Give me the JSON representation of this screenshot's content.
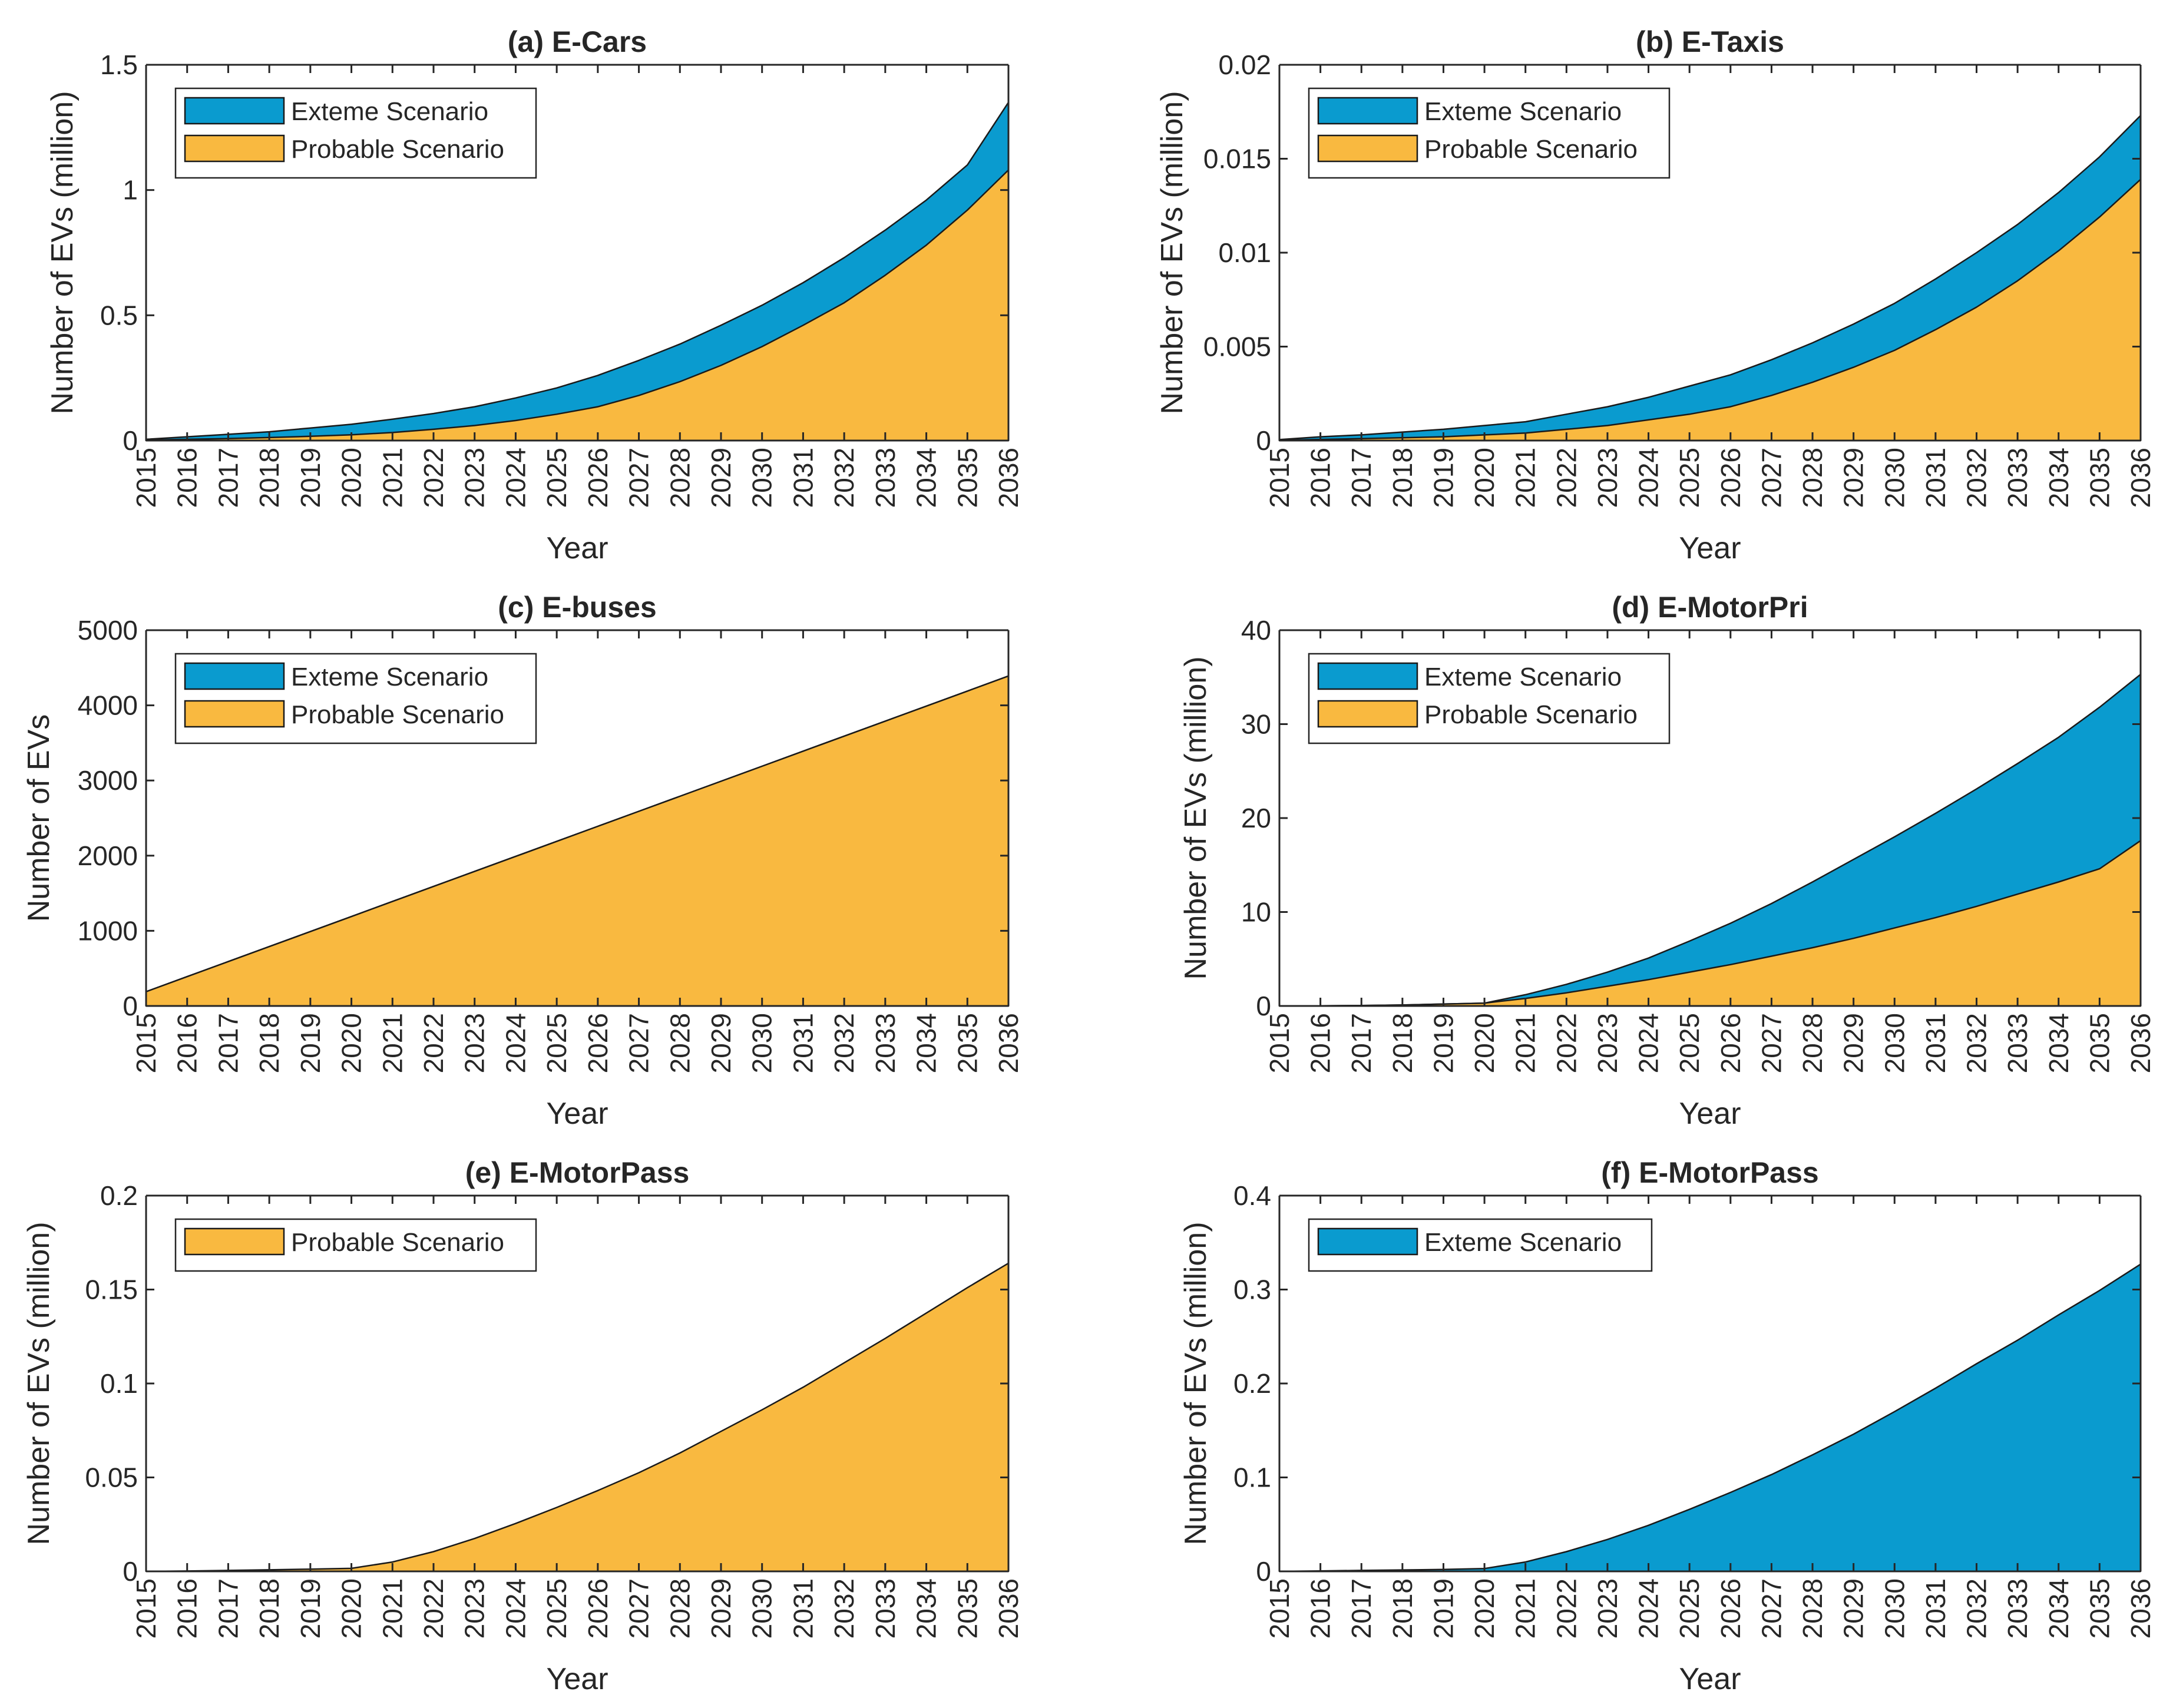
{
  "colors": {
    "extreme": "#0a9bcf",
    "probable": "#f9b940",
    "axis": "#262626",
    "outline": "#1a1a1a"
  },
  "chart_data": [
    {
      "id": "a",
      "type": "area",
      "title": "(a) E-Cars",
      "xlabel": "Year",
      "ylabel": "Number of EVs (million)",
      "xlim": [
        2015,
        2036
      ],
      "ylim": [
        0,
        1.5
      ],
      "yticks": [
        0,
        0.5,
        1,
        1.5
      ],
      "ytick_labels": [
        "0",
        "0.5",
        "1",
        "1.5"
      ],
      "legend": [
        "Exteme Scenario",
        "Probable Scenario"
      ],
      "x": [
        2015,
        2016,
        2017,
        2018,
        2019,
        2020,
        2021,
        2022,
        2023,
        2024,
        2025,
        2026,
        2027,
        2028,
        2029,
        2030,
        2031,
        2032,
        2033,
        2034,
        2035,
        2036
      ],
      "series": [
        {
          "name": "Exteme Scenario",
          "color_key": "extreme",
          "values": [
            0.005,
            0.015,
            0.025,
            0.035,
            0.05,
            0.065,
            0.085,
            0.108,
            0.135,
            0.17,
            0.21,
            0.26,
            0.32,
            0.385,
            0.46,
            0.54,
            0.63,
            0.73,
            0.84,
            0.96,
            1.1,
            1.35
          ]
        },
        {
          "name": "Probable Scenario",
          "color_key": "probable",
          "values": [
            0.002,
            0.005,
            0.008,
            0.012,
            0.017,
            0.023,
            0.032,
            0.045,
            0.06,
            0.08,
            0.105,
            0.135,
            0.18,
            0.235,
            0.3,
            0.375,
            0.46,
            0.55,
            0.66,
            0.78,
            0.92,
            1.08
          ]
        }
      ]
    },
    {
      "id": "b",
      "type": "area",
      "title": "(b) E-Taxis",
      "xlabel": "Year",
      "ylabel": "Number of EVs (million)",
      "xlim": [
        2015,
        2036
      ],
      "ylim": [
        0,
        0.02
      ],
      "yticks": [
        0,
        0.005,
        0.01,
        0.015,
        0.02
      ],
      "ytick_labels": [
        "0",
        "0.005",
        "0.01",
        "0.015",
        "0.02"
      ],
      "legend": [
        "Exteme Scenario",
        "Probable Scenario"
      ],
      "x": [
        2015,
        2016,
        2017,
        2018,
        2019,
        2020,
        2021,
        2022,
        2023,
        2024,
        2025,
        2026,
        2027,
        2028,
        2029,
        2030,
        2031,
        2032,
        2033,
        2034,
        2035,
        2036
      ],
      "series": [
        {
          "name": "Exteme Scenario",
          "color_key": "extreme",
          "values": [
            5e-05,
            0.0002,
            0.0003,
            0.00045,
            0.0006,
            0.0008,
            0.001,
            0.0014,
            0.0018,
            0.0023,
            0.0029,
            0.0035,
            0.0043,
            0.0052,
            0.0062,
            0.0073,
            0.0086,
            0.01,
            0.0115,
            0.0132,
            0.0151,
            0.0173
          ]
        },
        {
          "name": "Probable Scenario",
          "color_key": "probable",
          "values": [
            2e-05,
            6e-05,
            0.0001,
            0.00015,
            0.0002,
            0.0003,
            0.0004,
            0.0006,
            0.0008,
            0.0011,
            0.0014,
            0.0018,
            0.0024,
            0.0031,
            0.0039,
            0.0048,
            0.0059,
            0.0071,
            0.0085,
            0.0101,
            0.0119,
            0.0139
          ]
        }
      ]
    },
    {
      "id": "c",
      "type": "area",
      "title": "(c) E-buses",
      "xlabel": "Year",
      "ylabel": "Number of EVs",
      "xlim": [
        2015,
        2036
      ],
      "ylim": [
        0,
        5000
      ],
      "yticks": [
        0,
        1000,
        2000,
        3000,
        4000,
        5000
      ],
      "ytick_labels": [
        "0",
        "1000",
        "2000",
        "3000",
        "4000",
        "5000"
      ],
      "legend": [
        "Exteme Scenario",
        "Probable Scenario"
      ],
      "x": [
        2015,
        2016,
        2017,
        2018,
        2019,
        2020,
        2021,
        2022,
        2023,
        2024,
        2025,
        2026,
        2027,
        2028,
        2029,
        2030,
        2031,
        2032,
        2033,
        2034,
        2035,
        2036
      ],
      "series": [
        {
          "name": "Exteme Scenario",
          "color_key": "extreme",
          "values": [
            190,
            390,
            590,
            790,
            990,
            1190,
            1390,
            1590,
            1790,
            1990,
            2190,
            2390,
            2590,
            2790,
            2990,
            3190,
            3390,
            3590,
            3790,
            3990,
            4190,
            4390
          ]
        },
        {
          "name": "Probable Scenario",
          "color_key": "probable",
          "values": [
            190,
            390,
            590,
            790,
            990,
            1190,
            1390,
            1590,
            1790,
            1990,
            2190,
            2390,
            2590,
            2790,
            2990,
            3190,
            3390,
            3590,
            3790,
            3990,
            4190,
            4390
          ]
        }
      ]
    },
    {
      "id": "d",
      "type": "area",
      "title": "(d) E-MotorPri",
      "xlabel": "Year",
      "ylabel": "Number of EVs (million)",
      "xlim": [
        2015,
        2036
      ],
      "ylim": [
        0,
        40
      ],
      "yticks": [
        0,
        10,
        20,
        30,
        40
      ],
      "ytick_labels": [
        "0",
        "10",
        "20",
        "30",
        "40"
      ],
      "legend": [
        "Exteme Scenario",
        "Probable Scenario"
      ],
      "x": [
        2015,
        2016,
        2017,
        2018,
        2019,
        2020,
        2021,
        2022,
        2023,
        2024,
        2025,
        2026,
        2027,
        2028,
        2029,
        2030,
        2031,
        2032,
        2033,
        2034,
        2035,
        2036
      ],
      "series": [
        {
          "name": "Exteme Scenario",
          "color_key": "extreme",
          "values": [
            0,
            0.02,
            0.05,
            0.1,
            0.2,
            0.3,
            1.2,
            2.3,
            3.6,
            5.1,
            6.9,
            8.8,
            10.9,
            13.2,
            15.6,
            18.0,
            20.5,
            23.1,
            25.8,
            28.6,
            31.8,
            35.3
          ]
        },
        {
          "name": "Probable Scenario",
          "color_key": "probable",
          "values": [
            0,
            0.02,
            0.05,
            0.1,
            0.2,
            0.3,
            0.8,
            1.4,
            2.1,
            2.8,
            3.6,
            4.4,
            5.3,
            6.2,
            7.2,
            8.3,
            9.4,
            10.6,
            11.9,
            13.2,
            14.6,
            17.6
          ]
        }
      ]
    },
    {
      "id": "e",
      "type": "area",
      "title": "(e) E-MotorPass",
      "xlabel": "Year",
      "ylabel": "Number of EVs (million)",
      "xlim": [
        2015,
        2036
      ],
      "ylim": [
        0,
        0.2
      ],
      "yticks": [
        0,
        0.05,
        0.1,
        0.15,
        0.2
      ],
      "ytick_labels": [
        "0",
        "0.05",
        "0.1",
        "0.15",
        "0.2"
      ],
      "legend": [
        "Probable Scenario"
      ],
      "x": [
        2015,
        2016,
        2017,
        2018,
        2019,
        2020,
        2021,
        2022,
        2023,
        2024,
        2025,
        2026,
        2027,
        2028,
        2029,
        2030,
        2031,
        2032,
        2033,
        2034,
        2035,
        2036
      ],
      "series": [
        {
          "name": "Probable Scenario",
          "color_key": "probable",
          "values": [
            0,
            0.0002,
            0.0005,
            0.0008,
            0.0012,
            0.0016,
            0.005,
            0.0105,
            0.0175,
            0.0255,
            0.034,
            0.043,
            0.0525,
            0.063,
            0.0745,
            0.086,
            0.098,
            0.111,
            0.124,
            0.1375,
            0.151,
            0.164
          ]
        }
      ]
    },
    {
      "id": "f",
      "type": "area",
      "title": "(f) E-MotorPass",
      "xlabel": "Year",
      "ylabel": "Number of EVs (million)",
      "xlim": [
        2015,
        2036
      ],
      "ylim": [
        0,
        0.4
      ],
      "yticks": [
        0,
        0.1,
        0.2,
        0.3,
        0.4
      ],
      "ytick_labels": [
        "0",
        "0.1",
        "0.2",
        "0.3",
        "0.4"
      ],
      "legend": [
        "Exteme Scenario"
      ],
      "x": [
        2015,
        2016,
        2017,
        2018,
        2019,
        2020,
        2021,
        2022,
        2023,
        2024,
        2025,
        2026,
        2027,
        2028,
        2029,
        2030,
        2031,
        2032,
        2033,
        2034,
        2035,
        2036
      ],
      "series": [
        {
          "name": "Exteme Scenario",
          "color_key": "extreme",
          "values": [
            0,
            0.0005,
            0.001,
            0.0015,
            0.002,
            0.003,
            0.01,
            0.021,
            0.034,
            0.049,
            0.066,
            0.084,
            0.103,
            0.124,
            0.146,
            0.17,
            0.195,
            0.221,
            0.246,
            0.273,
            0.299,
            0.327
          ]
        }
      ]
    }
  ]
}
